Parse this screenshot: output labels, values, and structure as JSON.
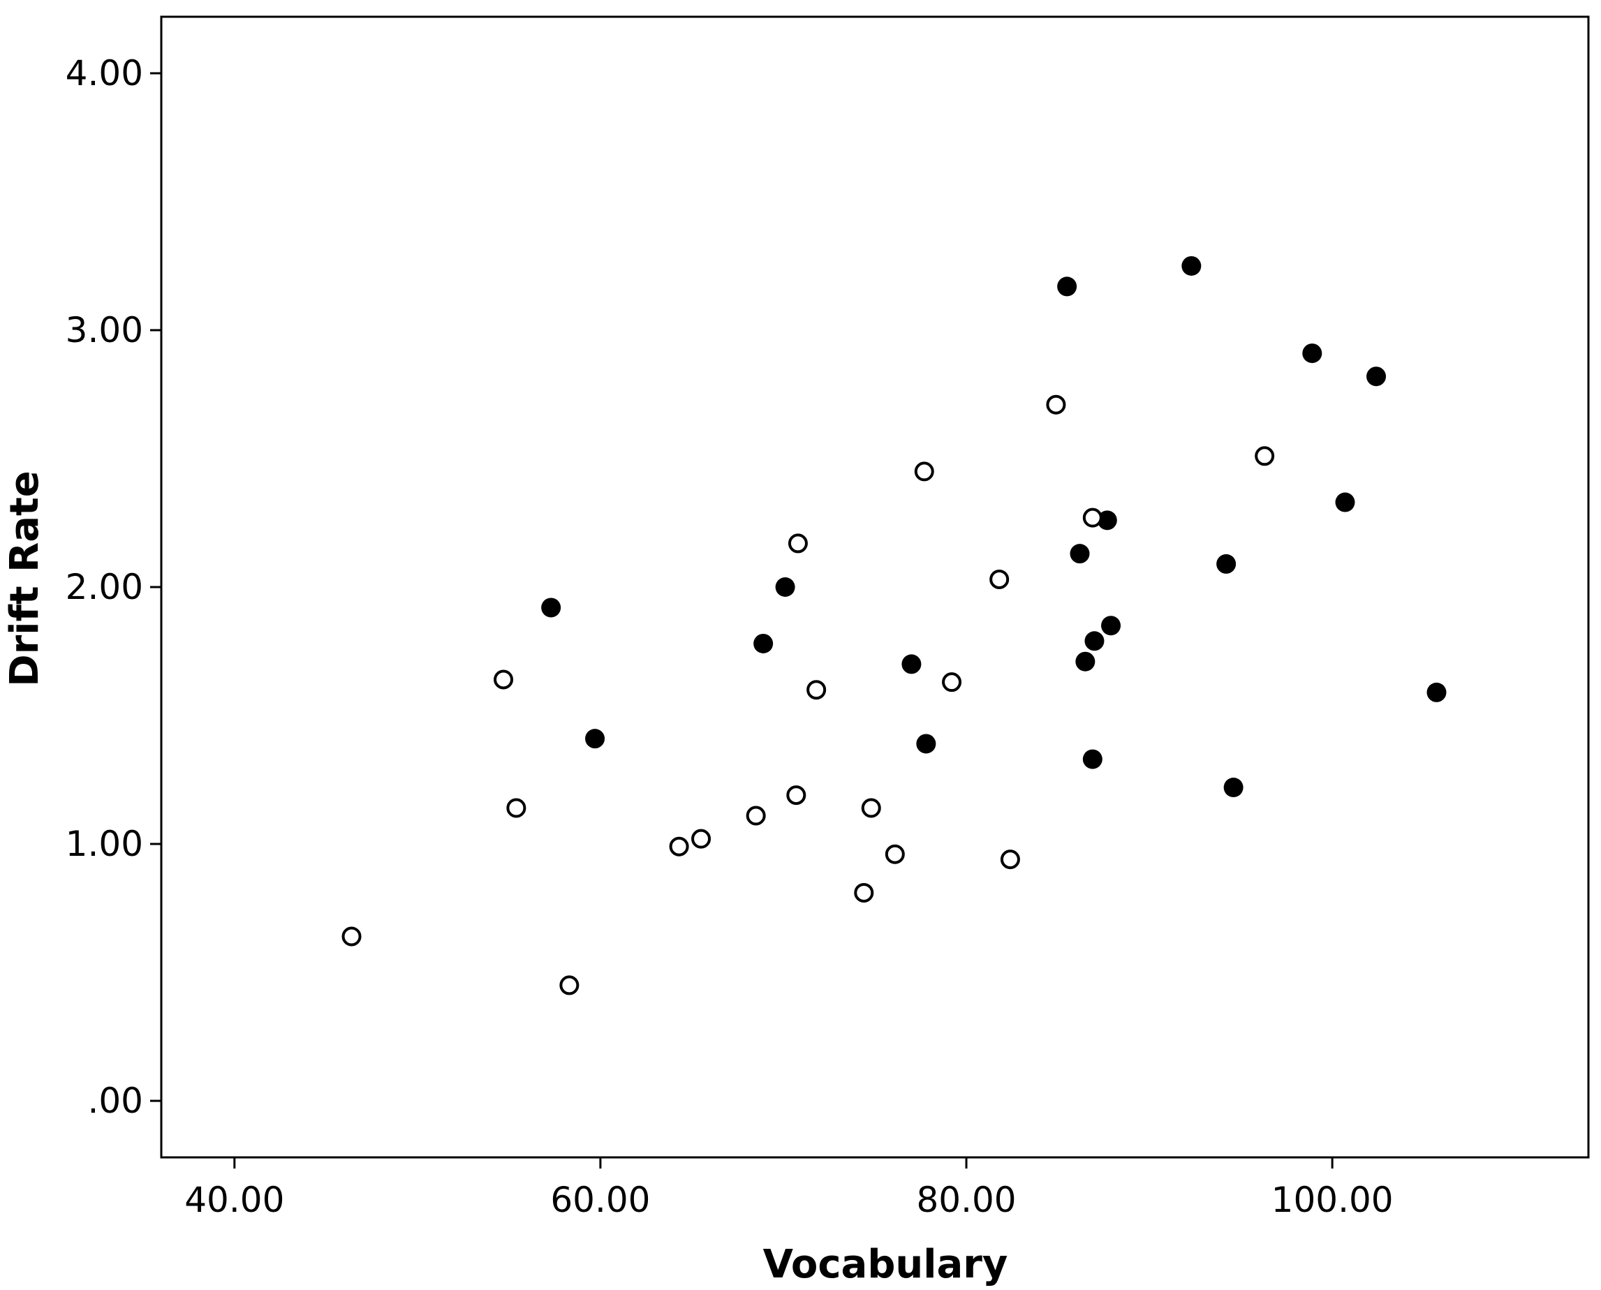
{
  "chart_data": {
    "type": "scatter",
    "xlabel": "Vocabulary",
    "ylabel": "Drift Rate",
    "xlim": [
      36,
      114
    ],
    "ylim": [
      -0.22,
      4.22
    ],
    "x_ticks": [
      40,
      60,
      80,
      100
    ],
    "x_tick_labels": [
      "40.00",
      "60.00",
      "80.00",
      "100.00"
    ],
    "y_ticks": [
      0,
      1,
      2,
      3,
      4
    ],
    "y_tick_labels": [
      ".00",
      "1.00",
      "2.00",
      "3.00",
      "4.00"
    ],
    "grid": false,
    "legend": "none",
    "series": [
      {
        "marker": "filled-circle",
        "color": "#000000",
        "points": [
          [
            57.3,
            1.92
          ],
          [
            59.7,
            1.41
          ],
          [
            68.9,
            1.78
          ],
          [
            70.1,
            2.0
          ],
          [
            77.0,
            1.7
          ],
          [
            77.8,
            1.39
          ],
          [
            85.5,
            3.17
          ],
          [
            86.2,
            2.13
          ],
          [
            86.5,
            1.71
          ],
          [
            87.0,
            1.79
          ],
          [
            86.9,
            1.33
          ],
          [
            87.7,
            2.26
          ],
          [
            87.9,
            1.85
          ],
          [
            92.3,
            3.25
          ],
          [
            94.2,
            2.09
          ],
          [
            94.6,
            1.22
          ],
          [
            98.9,
            2.91
          ],
          [
            100.7,
            2.33
          ],
          [
            102.4,
            2.82
          ],
          [
            105.7,
            1.59
          ]
        ]
      },
      {
        "marker": "open-circle",
        "color": "#000000",
        "points": [
          [
            46.4,
            0.64
          ],
          [
            54.7,
            1.64
          ],
          [
            55.4,
            1.14
          ],
          [
            58.3,
            0.45
          ],
          [
            64.3,
            0.99
          ],
          [
            65.5,
            1.02
          ],
          [
            68.5,
            1.11
          ],
          [
            70.7,
            1.19
          ],
          [
            70.8,
            2.17
          ],
          [
            71.8,
            1.6
          ],
          [
            74.4,
            0.81
          ],
          [
            74.8,
            1.14
          ],
          [
            76.1,
            0.96
          ],
          [
            77.7,
            2.45
          ],
          [
            79.2,
            1.63
          ],
          [
            81.8,
            2.03
          ],
          [
            82.4,
            0.94
          ],
          [
            84.9,
            2.71
          ],
          [
            86.9,
            2.27
          ],
          [
            96.3,
            2.51
          ]
        ]
      }
    ]
  }
}
